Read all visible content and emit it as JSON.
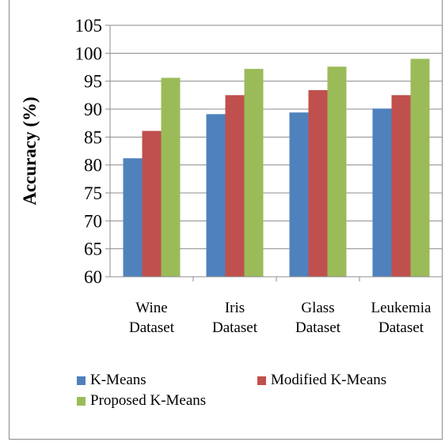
{
  "chart_data": {
    "type": "bar",
    "title": "",
    "xlabel": "",
    "ylabel": "Accuracy (%)",
    "ylim": [
      60,
      105
    ],
    "yticks": [
      60,
      65,
      70,
      75,
      80,
      85,
      90,
      95,
      100,
      105
    ],
    "grid": true,
    "legend_position": "bottom",
    "categories": [
      [
        "Wine",
        "Dataset"
      ],
      [
        "Iris",
        "Dataset"
      ],
      [
        "Glass",
        "Dataset"
      ],
      [
        "Leukemia",
        "Dataset"
      ]
    ],
    "series": [
      {
        "name": "K-Means",
        "color": "#4f81bd",
        "values": [
          81.2,
          89.1,
          89.4,
          90.1
        ]
      },
      {
        "name": "Modified K-Means",
        "color": "#c0504d",
        "values": [
          86.1,
          92.5,
          93.4,
          92.5
        ]
      },
      {
        "name": "Proposed K-Means",
        "color": "#9bbb59",
        "values": [
          95.6,
          97.2,
          97.6,
          99.0
        ]
      }
    ]
  }
}
